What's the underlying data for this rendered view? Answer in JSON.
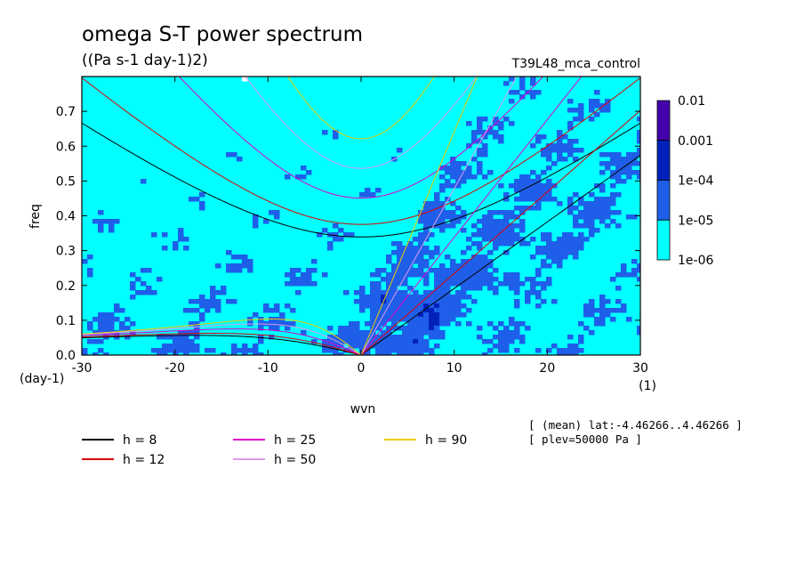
{
  "header": {
    "title": "omega S-T power spectrum",
    "units": "((Pa s-1 day-1)2)",
    "run_name": "T39L48_mca_control"
  },
  "axes": {
    "xlabel": "wvn",
    "ylabel": "freq",
    "x_unit": "(1)",
    "y_unit": "(day-1)"
  },
  "info": {
    "line1": "[ (mean) lat:-4.46266..4.46266 ]",
    "line2": "[ plev=50000 Pa ]"
  },
  "colorbar": {
    "levels": [
      {
        "label": "0.01",
        "color": "#4400aa"
      },
      {
        "label": "0.001",
        "color": "#0022bb"
      },
      {
        "label": "1e-04",
        "color": "#1f5ee8"
      },
      {
        "label": "1e-05",
        "color": "#00ffff"
      },
      {
        "label": "1e-06",
        "color": ""
      }
    ]
  },
  "chart_data": {
    "type": "heatmap",
    "title": "omega S-T power spectrum",
    "subtitle": "((Pa s-1 day-1)2)",
    "xlabel": "wvn",
    "ylabel": "freq",
    "xlim": [
      -30,
      30
    ],
    "ylim": [
      0,
      0.8
    ],
    "x_ticks": [
      -30,
      -20,
      -10,
      0,
      10,
      20,
      30
    ],
    "x_tick_labels": [
      "-30",
      "-20",
      "-10",
      "0",
      "10",
      "20",
      "30"
    ],
    "y_ticks": [
      0,
      0.1,
      0.2,
      0.3,
      0.4,
      0.5,
      0.6,
      0.7
    ],
    "y_tick_labels": [
      "0.0",
      "0.1",
      "0.2",
      "0.3",
      "0.4",
      "0.5",
      "0.6",
      "0.7"
    ],
    "colors": {
      "background": "#00ffff",
      "low": "#1f5ee8",
      "mid": "#0022bb",
      "high": "#4400aa",
      "missing": "#ffffff"
    },
    "dispersion_curves": [
      {
        "name": "h =  8",
        "h": 8,
        "color": "#000000"
      },
      {
        "name": "h = 12",
        "h": 12,
        "color": "#dd0000"
      },
      {
        "name": "h = 25",
        "h": 25,
        "color": "#dd00cc"
      },
      {
        "name": "h = 50",
        "h": 50,
        "color": "#dd99ee"
      },
      {
        "name": "h = 90",
        "h": 90,
        "color": "#eecc00"
      }
    ]
  }
}
